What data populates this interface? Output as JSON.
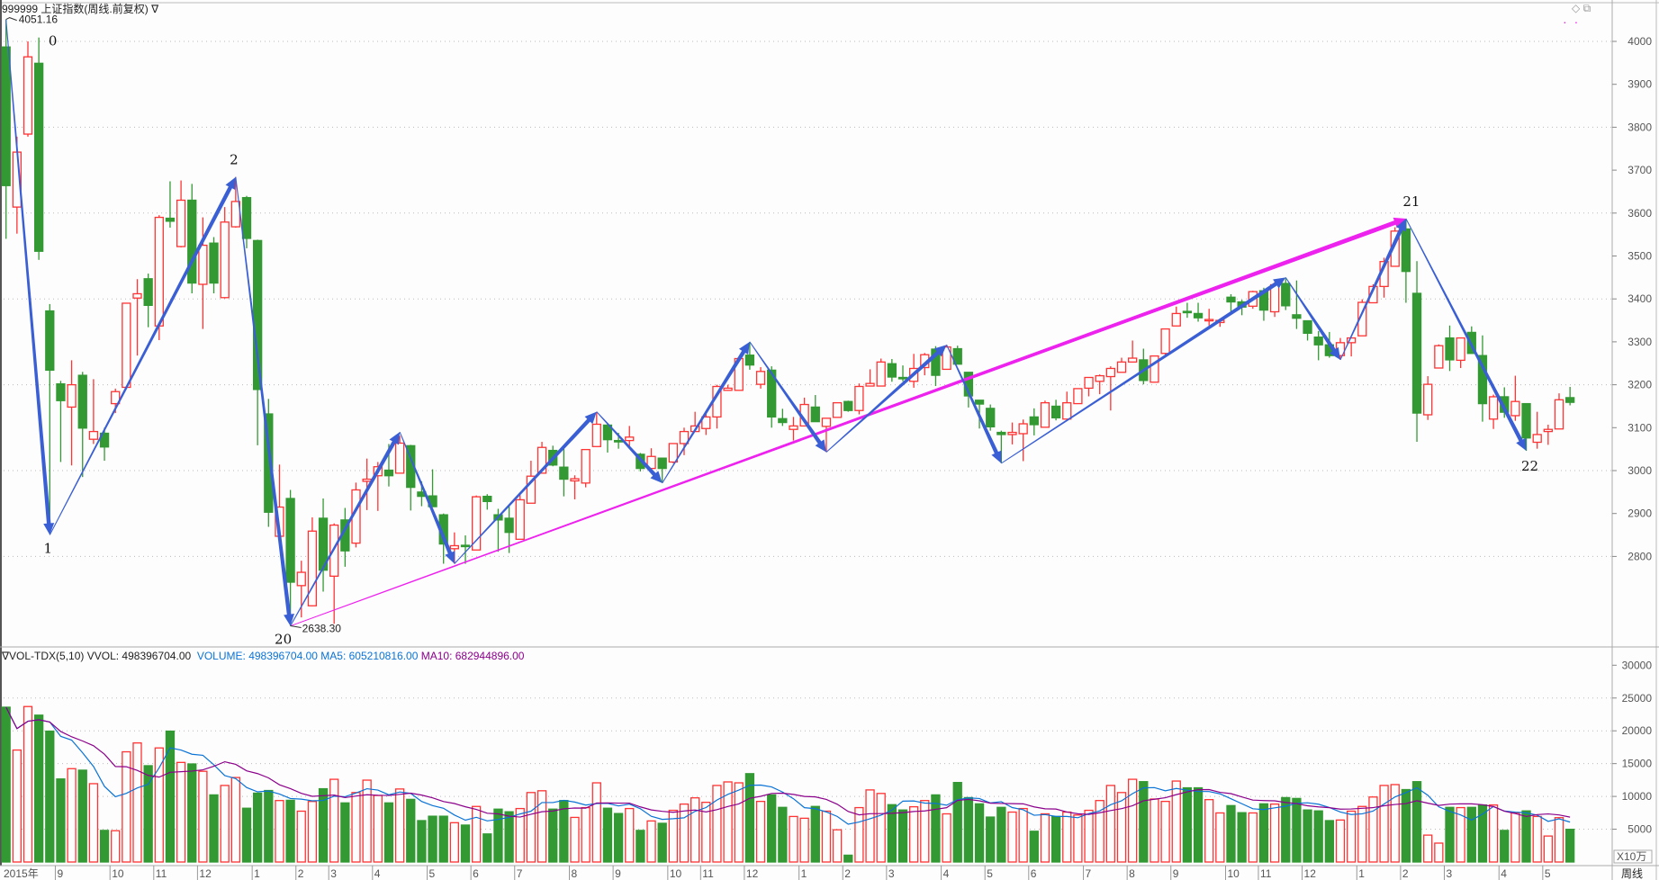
{
  "header": {
    "code": "999999",
    "name": "上证指数(周线.前复权)",
    "menu": "∇"
  },
  "window_icons": {
    "diamond": "◇",
    "restore": "⧉",
    "dots": "··"
  },
  "volume_header": {
    "prefix": "∇VOL-TDX(5,10)",
    "vvol": "VVOL: 498396704.00",
    "volume": "VOLUME: 498396704.00",
    "ma5": "MA5: 605210816.00",
    "ma10": "MA10: 682944896.00"
  },
  "colors": {
    "up": "#ff3333",
    "down": "#339933",
    "wave": "#3a5fd4",
    "trend": "#ee22ee",
    "ma5": "#0a73d6",
    "ma10": "#8b008b"
  },
  "chart_data": {
    "type": "candlestick",
    "title": "999999 上证指数(周线.前复权)",
    "period": "周线",
    "price_axis": {
      "ticks": [
        4000,
        3900,
        3800,
        3700,
        3600,
        3500,
        3400,
        3300,
        3200,
        3100,
        3000,
        2900,
        2800
      ],
      "grid": [
        4000,
        3800,
        3600,
        3400,
        3200,
        3000,
        2800
      ]
    },
    "volume_axis": {
      "ticks": [
        30000,
        25000,
        20000,
        15000,
        10000,
        5000
      ],
      "unit": "X10万"
    },
    "x_labels": [
      {
        "w": 1,
        "t": "2015年"
      },
      {
        "w": 6,
        "t": "9"
      },
      {
        "w": 11,
        "t": "10"
      },
      {
        "w": 15,
        "t": "11"
      },
      {
        "w": 19,
        "t": "12"
      },
      {
        "w": 24,
        "t": "1"
      },
      {
        "w": 28,
        "t": "2"
      },
      {
        "w": 31,
        "t": "3"
      },
      {
        "w": 35,
        "t": "4"
      },
      {
        "w": 40,
        "t": "5"
      },
      {
        "w": 44,
        "t": "6"
      },
      {
        "w": 48,
        "t": "7"
      },
      {
        "w": 53,
        "t": "8"
      },
      {
        "w": 57,
        "t": "9"
      },
      {
        "w": 62,
        "t": "10"
      },
      {
        "w": 65,
        "t": "11"
      },
      {
        "w": 69,
        "t": "12"
      },
      {
        "w": 74,
        "t": "1"
      },
      {
        "w": 78,
        "t": "2"
      },
      {
        "w": 82,
        "t": "3"
      },
      {
        "w": 87,
        "t": "4"
      },
      {
        "w": 91,
        "t": "5"
      },
      {
        "w": 95,
        "t": "6"
      },
      {
        "w": 100,
        "t": "7"
      },
      {
        "w": 104,
        "t": "8"
      },
      {
        "w": 108,
        "t": "9"
      },
      {
        "w": 113,
        "t": "10"
      },
      {
        "w": 116,
        "t": "11"
      },
      {
        "w": 120,
        "t": "12"
      },
      {
        "w": 125,
        "t": "1"
      },
      {
        "w": 129,
        "t": "2"
      },
      {
        "w": 133,
        "t": "3"
      },
      {
        "w": 138,
        "t": "4"
      },
      {
        "w": 142,
        "t": "5"
      }
    ],
    "candles_fields": [
      "open",
      "high",
      "low",
      "close",
      "volume"
    ],
    "candles": [
      [
        3987,
        4051,
        3540,
        3664,
        23600
      ],
      [
        3614,
        3778,
        3552,
        3742,
        17070
      ],
      [
        3784,
        4000,
        3778,
        3964,
        23700
      ],
      [
        3949,
        4009,
        3491,
        3511,
        22390
      ],
      [
        3372,
        3388,
        2860,
        3234,
        19950
      ],
      [
        3202,
        3209,
        3020,
        3163,
        12660
      ],
      [
        3148,
        3257,
        3012,
        3200,
        14230
      ],
      [
        3222,
        3230,
        2985,
        3099,
        14000
      ],
      [
        3073,
        3213,
        3062,
        3091,
        11940
      ],
      [
        3087,
        3100,
        3023,
        3055,
        4820
      ],
      [
        3156,
        3191,
        3134,
        3184,
        4770
      ],
      [
        3194,
        3390,
        3191,
        3390,
        16800
      ],
      [
        3402,
        3446,
        3268,
        3412,
        18150
      ],
      [
        3447,
        3459,
        3334,
        3385,
        14680
      ],
      [
        3337,
        3595,
        3304,
        3590,
        17390
      ],
      [
        3588,
        3674,
        3566,
        3581,
        19950
      ],
      [
        3522,
        3676,
        3520,
        3630,
        15180
      ],
      [
        3630,
        3668,
        3413,
        3437,
        14950
      ],
      [
        3434,
        3590,
        3330,
        3525,
        13830
      ],
      [
        3530,
        3544,
        3413,
        3437,
        10230
      ],
      [
        3403,
        3614,
        3401,
        3579,
        11670
      ],
      [
        3568,
        3684,
        3566,
        3627,
        12880
      ],
      [
        3636,
        3640,
        3518,
        3541,
        8200
      ],
      [
        3536,
        3538,
        3059,
        3189,
        10500
      ],
      [
        3132,
        3167,
        2869,
        2903,
        10900
      ],
      [
        2847,
        3014,
        2847,
        2915,
        9370
      ],
      [
        2935,
        2955,
        2638,
        2740,
        9410
      ],
      [
        2732,
        2790,
        2658,
        2763,
        7750
      ],
      [
        2685,
        2891,
        2684,
        2859,
        9230
      ],
      [
        2889,
        2935,
        2718,
        2768,
        11170
      ],
      [
        2754,
        2877,
        2643,
        2873,
        12610
      ],
      [
        2885,
        2913,
        2776,
        2813,
        9010
      ],
      [
        2831,
        2972,
        2821,
        2955,
        10590
      ],
      [
        2975,
        3028,
        2908,
        2980,
        12480
      ],
      [
        2988,
        3020,
        2906,
        3009,
        10140
      ],
      [
        3001,
        3062,
        2963,
        2988,
        9010
      ],
      [
        2994,
        3081,
        2994,
        3064,
        11130
      ],
      [
        3058,
        3060,
        2907,
        2961,
        9550
      ],
      [
        2950,
        2975,
        2917,
        2940,
        6310
      ],
      [
        2941,
        3003,
        2916,
        2916,
        6980
      ],
      [
        2897,
        2900,
        2783,
        2829,
        6980
      ],
      [
        2818,
        2856,
        2783,
        2825,
        5990
      ],
      [
        2826,
        2849,
        2783,
        2824,
        5630
      ],
      [
        2815,
        2942,
        2815,
        2939,
        8470
      ],
      [
        2940,
        2945,
        2909,
        2928,
        4280
      ],
      [
        2897,
        2911,
        2811,
        2885,
        8060
      ],
      [
        2889,
        2920,
        2808,
        2856,
        7660
      ],
      [
        2840,
        2943,
        2840,
        2932,
        8150
      ],
      [
        2924,
        3023,
        2924,
        2987,
        10590
      ],
      [
        2994,
        3067,
        2994,
        3054,
        10860
      ],
      [
        3047,
        3058,
        3010,
        3013,
        8060
      ],
      [
        3008,
        3058,
        2940,
        2980,
        9370
      ],
      [
        2976,
        2989,
        2933,
        2981,
        6800
      ],
      [
        2971,
        3049,
        2961,
        3049,
        8290
      ],
      [
        3056,
        3137,
        3056,
        3108,
        12070
      ],
      [
        3106,
        3111,
        3042,
        3072,
        8200
      ],
      [
        3070,
        3088,
        3051,
        3069,
        7390
      ],
      [
        3070,
        3104,
        3055,
        3078,
        8150
      ],
      [
        3038,
        3041,
        2998,
        3005,
        4820
      ],
      [
        3005,
        3052,
        3005,
        3033,
        6260
      ],
      [
        3029,
        3029,
        2971,
        3005,
        5900
      ],
      [
        3020,
        3063,
        3017,
        3063,
        7880
      ],
      [
        3063,
        3100,
        3036,
        3091,
        8830
      ],
      [
        3091,
        3137,
        3091,
        3104,
        9780
      ],
      [
        3098,
        3139,
        3083,
        3125,
        9100
      ],
      [
        3125,
        3200,
        3098,
        3196,
        11670
      ],
      [
        3187,
        3200,
        3186,
        3192,
        12210
      ],
      [
        3187,
        3261,
        3187,
        3261,
        12070
      ],
      [
        3269,
        3300,
        3235,
        3246,
        13470
      ],
      [
        3201,
        3241,
        3191,
        3231,
        9240
      ],
      [
        3234,
        3243,
        3100,
        3125,
        10230
      ],
      [
        3121,
        3144,
        3104,
        3112,
        8330
      ],
      [
        3096,
        3125,
        3070,
        3104,
        6940
      ],
      [
        3104,
        3170,
        3104,
        3154,
        6670
      ],
      [
        3148,
        3176,
        3114,
        3114,
        8470
      ],
      [
        3103,
        3122,
        3043,
        3122,
        7750
      ],
      [
        3124,
        3158,
        3124,
        3158,
        4910
      ],
      [
        3161,
        3163,
        3137,
        3140,
        1040
      ],
      [
        3140,
        3203,
        3131,
        3196,
        8290
      ],
      [
        3197,
        3236,
        3197,
        3203,
        10990
      ],
      [
        3197,
        3261,
        3197,
        3253,
        10450
      ],
      [
        3249,
        3260,
        3207,
        3218,
        8740
      ],
      [
        3217,
        3245,
        3208,
        3215,
        7930
      ],
      [
        3208,
        3272,
        3193,
        3238,
        8420
      ],
      [
        3240,
        3274,
        3222,
        3270,
        9370
      ],
      [
        3283,
        3290,
        3197,
        3222,
        10230
      ],
      [
        3236,
        3293,
        3236,
        3288,
        7340
      ],
      [
        3284,
        3291,
        3248,
        3248,
        12120
      ],
      [
        3229,
        3229,
        3147,
        3174,
        9820
      ],
      [
        3164,
        3164,
        3098,
        3155,
        8870
      ],
      [
        3145,
        3154,
        3093,
        3102,
        6850
      ],
      [
        3089,
        3093,
        3017,
        3084,
        8330
      ],
      [
        3084,
        3112,
        3061,
        3089,
        7610
      ],
      [
        3086,
        3119,
        3022,
        3109,
        8150
      ],
      [
        3125,
        3145,
        3082,
        3107,
        4690
      ],
      [
        3101,
        3163,
        3101,
        3158,
        7340
      ],
      [
        3150,
        3165,
        3117,
        3123,
        6940
      ],
      [
        3120,
        3184,
        3120,
        3158,
        7610
      ],
      [
        3156,
        3191,
        3156,
        3191,
        7160
      ],
      [
        3192,
        3217,
        3173,
        3217,
        7880
      ],
      [
        3208,
        3224,
        3178,
        3221,
        9370
      ],
      [
        3219,
        3243,
        3140,
        3238,
        11670
      ],
      [
        3229,
        3263,
        3229,
        3253,
        10590
      ],
      [
        3253,
        3303,
        3253,
        3262,
        12610
      ],
      [
        3258,
        3284,
        3201,
        3210,
        12250
      ],
      [
        3206,
        3267,
        3206,
        3267,
        9600
      ],
      [
        3273,
        3330,
        3268,
        3330,
        9240
      ],
      [
        3337,
        3382,
        3337,
        3366,
        12340
      ],
      [
        3371,
        3391,
        3356,
        3370,
        11310
      ],
      [
        3366,
        3391,
        3347,
        3356,
        11310
      ],
      [
        3350,
        3377,
        3338,
        3352,
        9510
      ],
      [
        3345,
        3354,
        3335,
        3350,
        7480
      ],
      [
        3404,
        3411,
        3370,
        3393,
        8600
      ],
      [
        3393,
        3398,
        3362,
        3381,
        7520
      ],
      [
        3383,
        3419,
        3377,
        3417,
        7480
      ],
      [
        3419,
        3426,
        3349,
        3374,
        8870
      ],
      [
        3370,
        3439,
        3358,
        3433,
        8830
      ],
      [
        3436,
        3450,
        3374,
        3384,
        9820
      ],
      [
        3363,
        3443,
        3330,
        3355,
        9690
      ],
      [
        3349,
        3349,
        3303,
        3320,
        7930
      ],
      [
        3311,
        3325,
        3257,
        3293,
        7790
      ],
      [
        3293,
        3323,
        3263,
        3268,
        6310
      ],
      [
        3268,
        3309,
        3258,
        3298,
        6400
      ],
      [
        3298,
        3309,
        3266,
        3309,
        7750
      ],
      [
        3314,
        3399,
        3314,
        3392,
        8470
      ],
      [
        3391,
        3434,
        3391,
        3429,
        9910
      ],
      [
        3429,
        3496,
        3403,
        3487,
        11670
      ],
      [
        3476,
        3567,
        3476,
        3558,
        11800
      ],
      [
        3563,
        3587,
        3391,
        3464,
        11040
      ],
      [
        3413,
        3488,
        3067,
        3134,
        12250
      ],
      [
        3130,
        3220,
        3118,
        3201,
        4100
      ],
      [
        3239,
        3294,
        3239,
        3291,
        2880
      ],
      [
        3309,
        3338,
        3232,
        3258,
        8330
      ],
      [
        3257,
        3309,
        3239,
        3309,
        8290
      ],
      [
        3322,
        3336,
        3273,
        3273,
        8330
      ],
      [
        3268,
        3315,
        3114,
        3156,
        8690
      ],
      [
        3120,
        3177,
        3097,
        3172,
        8690
      ],
      [
        3172,
        3194,
        3123,
        3136,
        4820
      ],
      [
        3128,
        3221,
        3116,
        3161,
        7480
      ],
      [
        3156,
        3156,
        3046,
        3076,
        7790
      ],
      [
        3066,
        3137,
        3051,
        3084,
        6940
      ],
      [
        3091,
        3107,
        3060,
        3096,
        3960
      ],
      [
        3097,
        3180,
        3097,
        3165,
        6760
      ],
      [
        3170,
        3195,
        3152,
        3159,
        4984
      ]
    ],
    "extremes": {
      "high": {
        "w": 1,
        "price": 4051.16,
        "text": "4051.16"
      },
      "low": {
        "w": 27,
        "price": 2638.3,
        "text": "2638.30"
      }
    },
    "wave_segments": [
      {
        "from": [
          1,
          4051
        ],
        "to": [
          5,
          2850
        ]
      },
      {
        "from": [
          5,
          2850
        ],
        "to": [
          22,
          3684
        ]
      },
      {
        "from": [
          22,
          3684
        ],
        "to": [
          27,
          2638
        ]
      },
      {
        "from": [
          27,
          2638
        ],
        "to": [
          37,
          3090
        ]
      },
      {
        "from": [
          37,
          3090
        ],
        "to": [
          42,
          2783
        ]
      },
      {
        "from": [
          42,
          2783
        ],
        "to": [
          55,
          3137
        ]
      },
      {
        "from": [
          55,
          3137
        ],
        "to": [
          61,
          2971
        ]
      },
      {
        "from": [
          61,
          2971
        ],
        "to": [
          69,
          3300
        ]
      },
      {
        "from": [
          69,
          3300
        ],
        "to": [
          76,
          3043
        ]
      },
      {
        "from": [
          76,
          3043
        ],
        "to": [
          87,
          3293
        ]
      },
      {
        "from": [
          87,
          3293
        ],
        "to": [
          92,
          3017
        ]
      },
      {
        "from": [
          92,
          3017
        ],
        "to": [
          118,
          3450
        ]
      },
      {
        "from": [
          118,
          3450
        ],
        "to": [
          123,
          3258
        ]
      },
      {
        "from": [
          123,
          3258
        ],
        "to": [
          129,
          3587
        ]
      },
      {
        "from": [
          129,
          3587
        ],
        "to": [
          140,
          3046
        ]
      }
    ],
    "trend_line": {
      "from": [
        27,
        2638
      ],
      "to": [
        129,
        3587
      ]
    },
    "pivot_labels": [
      {
        "t": "0",
        "w": 1,
        "price": 4051
      },
      {
        "t": "1",
        "w": 5,
        "price": 2850
      },
      {
        "t": "2",
        "w": 22,
        "price": 3684
      },
      {
        "t": "20",
        "w": 27,
        "price": 2638
      },
      {
        "t": "21",
        "w": 129,
        "price": 3587
      },
      {
        "t": "22",
        "w": 140,
        "price": 3046
      }
    ]
  },
  "footer": {
    "period_label": "周线"
  }
}
